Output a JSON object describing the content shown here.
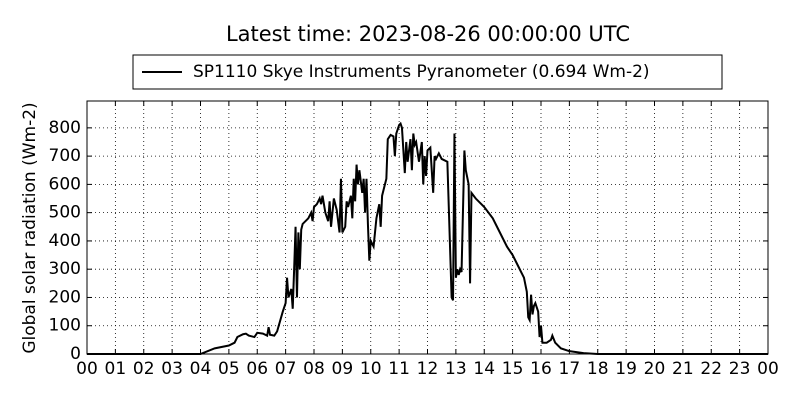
{
  "chart_data": {
    "type": "line",
    "title": "Latest time: 2023-08-26 00:00:00 UTC",
    "y_label": "Global solar radiation (Wm-2)",
    "legend": "upper center",
    "grid": true,
    "xlim": [
      0,
      24
    ],
    "ylim": [
      0,
      895
    ],
    "yticks": [
      0,
      100,
      200,
      300,
      400,
      500,
      600,
      700,
      800
    ],
    "xticks": [
      {
        "value": 0,
        "label": "00"
      },
      {
        "value": 1,
        "label": "01"
      },
      {
        "value": 2,
        "label": "02"
      },
      {
        "value": 3,
        "label": "03"
      },
      {
        "value": 4,
        "label": "04"
      },
      {
        "value": 5,
        "label": "05"
      },
      {
        "value": 6,
        "label": "06"
      },
      {
        "value": 7,
        "label": "07"
      },
      {
        "value": 8,
        "label": "08"
      },
      {
        "value": 9,
        "label": "09"
      },
      {
        "value": 10,
        "label": "10"
      },
      {
        "value": 11,
        "label": "11"
      },
      {
        "value": 12,
        "label": "12"
      },
      {
        "value": 13,
        "label": "13"
      },
      {
        "value": 14,
        "label": "14"
      },
      {
        "value": 15,
        "label": "15"
      },
      {
        "value": 16,
        "label": "16"
      },
      {
        "value": 17,
        "label": "17"
      },
      {
        "value": 18,
        "label": "18"
      },
      {
        "value": 19,
        "label": "19"
      },
      {
        "value": 20,
        "label": "20"
      },
      {
        "value": 21,
        "label": "21"
      },
      {
        "value": 22,
        "label": "22"
      },
      {
        "value": 23,
        "label": "23"
      },
      {
        "value": 24,
        "label": "00"
      }
    ],
    "x": [
      0,
      4.0,
      4.5,
      5.0,
      5.2,
      5.3,
      5.5,
      5.6,
      5.7,
      5.9,
      6.0,
      6.2,
      6.35,
      6.4,
      6.45,
      6.6,
      6.7,
      6.9,
      7.0,
      7.05,
      7.1,
      7.2,
      7.25,
      7.3,
      7.35,
      7.4,
      7.45,
      7.5,
      7.55,
      7.6,
      7.8,
      7.9,
      7.95,
      8.0,
      8.1,
      8.2,
      8.25,
      8.3,
      8.4,
      8.5,
      8.55,
      8.6,
      8.7,
      8.8,
      8.9,
      8.95,
      9.0,
      9.1,
      9.15,
      9.2,
      9.3,
      9.35,
      9.4,
      9.45,
      9.5,
      9.55,
      9.6,
      9.7,
      9.75,
      9.8,
      9.85,
      9.9,
      9.95,
      10.0,
      10.1,
      10.2,
      10.3,
      10.35,
      10.4,
      10.5,
      10.55,
      10.6,
      10.7,
      10.8,
      10.85,
      10.9,
      11.0,
      11.05,
      11.1,
      11.2,
      11.25,
      11.3,
      11.4,
      11.45,
      11.5,
      11.55,
      11.6,
      11.7,
      11.8,
      11.85,
      11.9,
      11.95,
      12.0,
      12.1,
      12.2,
      12.25,
      12.3,
      12.4,
      12.5,
      12.7,
      12.85,
      12.9,
      12.95,
      13.0,
      13.05,
      13.1,
      13.15,
      13.2,
      13.3,
      13.35,
      13.45,
      13.5,
      13.55,
      13.7,
      14.0,
      14.3,
      14.5,
      14.8,
      15.0,
      15.2,
      15.4,
      15.5,
      15.55,
      15.6,
      15.65,
      15.7,
      15.75,
      15.8,
      15.9,
      15.95,
      16.0,
      16.05,
      16.2,
      16.35,
      16.4,
      16.5,
      16.7,
      17.0,
      17.5,
      18.0,
      24.0
    ],
    "series": [
      {
        "name": "SP1110 Skye Instruments Pyranometer (0.694 Wm-2)",
        "color": "#000000",
        "values": [
          0,
          0,
          20,
          30,
          40,
          60,
          70,
          72,
          65,
          60,
          75,
          72,
          65,
          95,
          68,
          65,
          80,
          150,
          180,
          270,
          200,
          230,
          160,
          300,
          450,
          200,
          430,
          300,
          440,
          460,
          480,
          500,
          470,
          520,
          530,
          550,
          530,
          560,
          500,
          470,
          540,
          450,
          550,
          510,
          430,
          620,
          430,
          450,
          540,
          520,
          560,
          480,
          620,
          540,
          670,
          600,
          650,
          570,
          620,
          500,
          620,
          460,
          330,
          400,
          380,
          480,
          530,
          450,
          560,
          600,
          620,
          760,
          775,
          770,
          700,
          780,
          810,
          815,
          800,
          640,
          750,
          680,
          760,
          650,
          780,
          740,
          750,
          680,
          750,
          600,
          700,
          630,
          720,
          730,
          570,
          700,
          690,
          710,
          690,
          680,
          200,
          190,
          780,
          270,
          300,
          280,
          300,
          290,
          720,
          650,
          600,
          250,
          570,
          550,
          520,
          480,
          440,
          380,
          350,
          310,
          270,
          220,
          130,
          120,
          210,
          140,
          170,
          180,
          150,
          60,
          100,
          40,
          40,
          50,
          65,
          40,
          20,
          10,
          3,
          0,
          0
        ]
      }
    ]
  }
}
